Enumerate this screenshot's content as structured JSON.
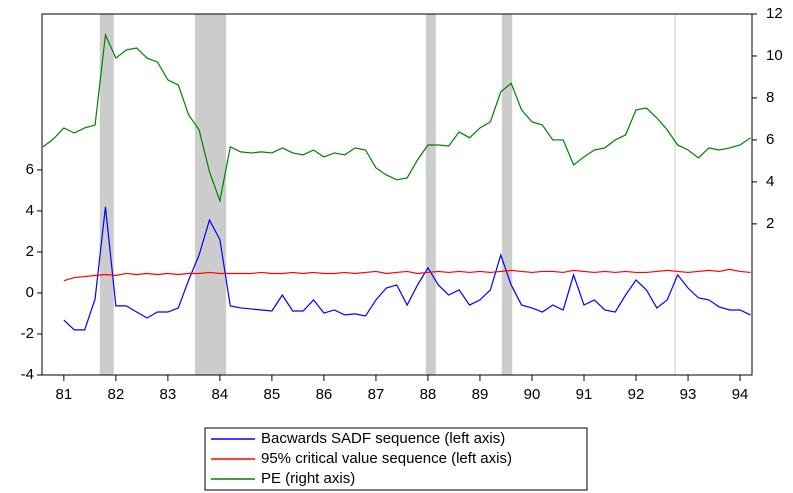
{
  "chart_data": {
    "type": "line",
    "x": [
      1980.6,
      1980.8,
      1981,
      1981.2,
      1981.4,
      1981.6,
      1981.8,
      1982,
      1982.2,
      1982.4,
      1982.6,
      1982.8,
      1983,
      1983.2,
      1983.4,
      1983.6,
      1983.8,
      1984,
      1984.2,
      1984.4,
      1984.6,
      1984.8,
      1985,
      1985.2,
      1985.4,
      1985.6,
      1985.8,
      1986,
      1986.2,
      1986.4,
      1986.6,
      1986.8,
      1987,
      1987.2,
      1987.4,
      1987.6,
      1987.8,
      1988,
      1988.2,
      1988.4,
      1988.6,
      1988.8,
      1989,
      1989.2,
      1989.4,
      1989.6,
      1989.8,
      1990,
      1990.2,
      1990.4,
      1990.6,
      1990.8,
      1991,
      1991.2,
      1991.4,
      1991.6,
      1991.8,
      1992,
      1992.2,
      1992.4,
      1992.6,
      1992.8,
      1993,
      1993.2,
      1993.4,
      1993.6,
      1993.8,
      1994,
      1994.2
    ],
    "series": [
      {
        "name": "Bacwards SADF sequence (left axis)",
        "color": "#0000ff",
        "axis": "y",
        "values": [
          null,
          null,
          -1.32,
          -1.8,
          -1.8,
          -0.3,
          4.2,
          -0.63,
          -0.63,
          -0.93,
          -1.22,
          -0.93,
          -0.93,
          -0.73,
          0.63,
          1.85,
          3.56,
          2.6,
          -0.63,
          -0.73,
          -0.78,
          -0.83,
          -0.88,
          -0.1,
          -0.88,
          -0.88,
          -0.34,
          -0.98,
          -0.83,
          -1.07,
          -1.02,
          -1.12,
          -0.34,
          0.24,
          0.39,
          -0.59,
          0.39,
          1.22,
          0.39,
          -0.1,
          0.15,
          -0.59,
          -0.34,
          0.15,
          1.85,
          0.39,
          -0.59,
          -0.73,
          -0.93,
          -0.59,
          -0.83,
          0.88,
          -0.59,
          -0.34,
          -0.83,
          -0.93,
          -0.1,
          0.63,
          0.15,
          -0.73,
          -0.34,
          0.88,
          0.24,
          -0.24,
          -0.34,
          -0.68,
          -0.83,
          -0.83,
          -1.07
        ]
      },
      {
        "name": "95% critical value sequence (left axis)",
        "color": "#ff0000",
        "axis": "y",
        "values": [
          null,
          null,
          0.6,
          0.75,
          0.8,
          0.85,
          0.9,
          0.85,
          0.95,
          0.9,
          0.95,
          0.9,
          0.95,
          0.9,
          0.95,
          0.95,
          1.0,
          0.95,
          0.95,
          0.95,
          0.95,
          1.0,
          0.95,
          0.95,
          1.0,
          0.95,
          1.0,
          0.95,
          0.95,
          1.0,
          0.95,
          1.0,
          1.05,
          0.95,
          1.0,
          1.05,
          0.95,
          1.0,
          1.05,
          1.0,
          1.05,
          1.0,
          1.05,
          1.0,
          1.05,
          1.1,
          1.05,
          1.0,
          1.05,
          1.05,
          1.0,
          1.1,
          1.05,
          1.0,
          1.05,
          1.0,
          1.05,
          1.0,
          1.0,
          1.05,
          1.1,
          1.05,
          1.0,
          1.05,
          1.1,
          1.05,
          1.15,
          1.05,
          1.0
        ]
      },
      {
        "name": "PE (right axis)",
        "color": "#008000",
        "axis": "y2",
        "values": [
          5.67,
          6.05,
          6.57,
          6.33,
          6.57,
          6.71,
          11.0,
          9.9,
          10.29,
          10.38,
          9.9,
          9.71,
          8.86,
          8.62,
          7.19,
          6.48,
          4.48,
          3.1,
          5.67,
          5.43,
          5.38,
          5.43,
          5.38,
          5.62,
          5.38,
          5.29,
          5.52,
          5.19,
          5.38,
          5.29,
          5.62,
          5.52,
          4.67,
          4.33,
          4.1,
          4.19,
          5.05,
          5.76,
          5.76,
          5.71,
          6.38,
          6.1,
          6.57,
          6.86,
          8.29,
          8.7,
          7.43,
          6.86,
          6.71,
          6.0,
          6.0,
          4.81,
          5.19,
          5.52,
          5.62,
          6.0,
          6.24,
          7.43,
          7.52,
          7.05,
          6.48,
          5.76,
          5.52,
          5.14,
          5.62,
          5.52,
          5.62,
          5.76,
          6.1
        ]
      }
    ],
    "shaded_periods": [
      [
        1981.69,
        1981.96
      ],
      [
        1983.52,
        1984.12
      ],
      [
        1987.96,
        1988.15
      ],
      [
        1989.42,
        1989.62
      ],
      [
        1992.74,
        1992.76
      ]
    ],
    "shade_color": "#cccccc",
    "xlim": [
      1980.58,
      1994.23
    ],
    "xticks": [
      {
        "value": 1981,
        "label": "81"
      },
      {
        "value": 1982,
        "label": "82"
      },
      {
        "value": 1983,
        "label": "83"
      },
      {
        "value": 1984,
        "label": "84"
      },
      {
        "value": 1985,
        "label": "85"
      },
      {
        "value": 1986,
        "label": "86"
      },
      {
        "value": 1987,
        "label": "87"
      },
      {
        "value": 1988,
        "label": "88"
      },
      {
        "value": 1989,
        "label": "89"
      },
      {
        "value": 1990,
        "label": "90"
      },
      {
        "value": 1991,
        "label": "91"
      },
      {
        "value": 1992,
        "label": "92"
      },
      {
        "value": 1993,
        "label": "93"
      },
      {
        "value": 1994,
        "label": "94"
      }
    ],
    "ylim": [
      -4,
      13.6
    ],
    "yticks": [
      -4,
      -2,
      0,
      2,
      4,
      6
    ],
    "y2lim": [
      -5.2,
      12
    ],
    "y2ticks": [
      2,
      4,
      6,
      8,
      10,
      12
    ],
    "grid": false,
    "legend": "bottom"
  }
}
